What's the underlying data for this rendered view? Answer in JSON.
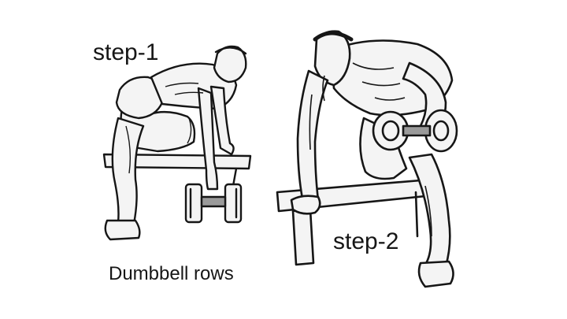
{
  "labels": {
    "step1": "step-1",
    "step2": "step-2",
    "caption": "Dumbbell rows"
  },
  "colors": {
    "background": "#ffffff",
    "ink": "#161616",
    "skin_fill": "#f4f4f4",
    "shade": "#9a9a9a"
  }
}
